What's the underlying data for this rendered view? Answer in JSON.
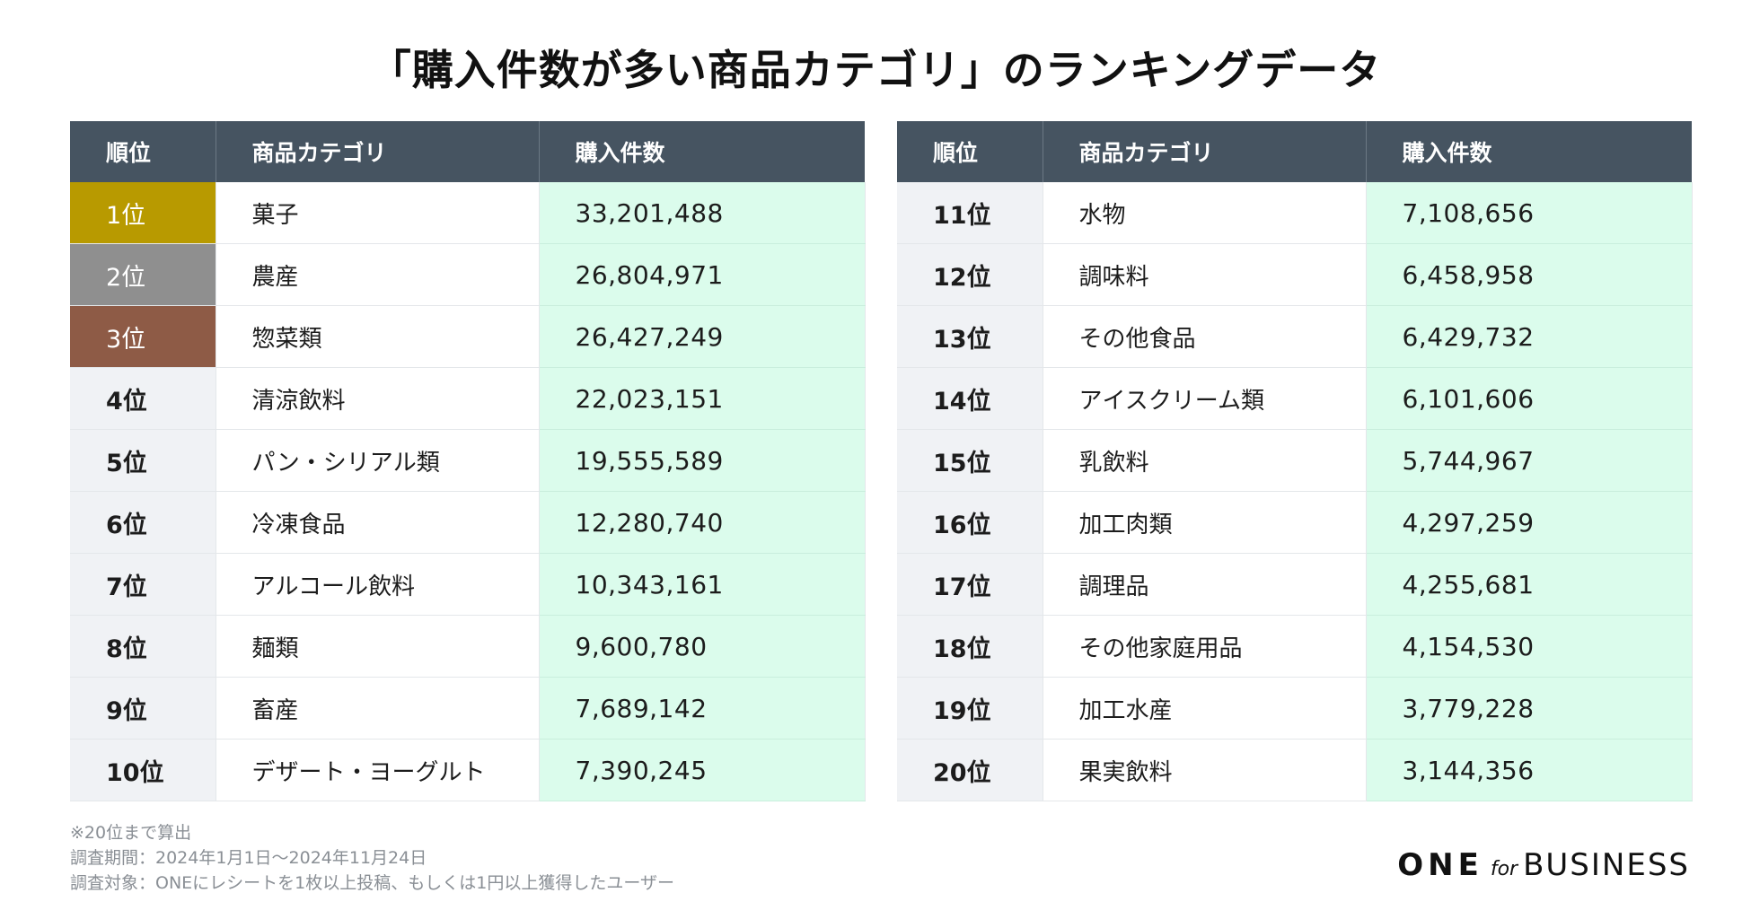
{
  "title": "「購入件数が多い商品カテゴリ」のランキングデータ",
  "headers": {
    "rank": "順位",
    "category": "商品カテゴリ",
    "count": "購入件数"
  },
  "colors": {
    "header": "#465461",
    "gold": "#b89a00",
    "silver": "#8f8f8f",
    "bronze": "#8e5b46",
    "value_bg": "#dbfcec",
    "rank_bg": "#f0f2f5"
  },
  "chart_data": {
    "type": "table",
    "columns": [
      "順位",
      "商品カテゴリ",
      "購入件数"
    ],
    "rows": [
      {
        "rank": "1位",
        "category": "菓子",
        "count": "33,201,488"
      },
      {
        "rank": "2位",
        "category": "農産",
        "count": "26,804,971"
      },
      {
        "rank": "3位",
        "category": "惣菜類",
        "count": "26,427,249"
      },
      {
        "rank": "4位",
        "category": "清涼飲料",
        "count": "22,023,151"
      },
      {
        "rank": "5位",
        "category": "パン・シリアル類",
        "count": "19,555,589"
      },
      {
        "rank": "6位",
        "category": "冷凍食品",
        "count": "12,280,740"
      },
      {
        "rank": "7位",
        "category": "アルコール飲料",
        "count": "10,343,161"
      },
      {
        "rank": "8位",
        "category": "麺類",
        "count": "9,600,780"
      },
      {
        "rank": "9位",
        "category": "畜産",
        "count": "7,689,142"
      },
      {
        "rank": "10位",
        "category": "デザート・ヨーグルト",
        "count": "7,390,245"
      },
      {
        "rank": "11位",
        "category": "水物",
        "count": "7,108,656"
      },
      {
        "rank": "12位",
        "category": "調味料",
        "count": "6,458,958"
      },
      {
        "rank": "13位",
        "category": "その他食品",
        "count": "6,429,732"
      },
      {
        "rank": "14位",
        "category": "アイスクリーム類",
        "count": "6,101,606"
      },
      {
        "rank": "15位",
        "category": "乳飲料",
        "count": "5,744,967"
      },
      {
        "rank": "16位",
        "category": "加工肉類",
        "count": "4,297,259"
      },
      {
        "rank": "17位",
        "category": "調理品",
        "count": "4,255,681"
      },
      {
        "rank": "18位",
        "category": "その他家庭用品",
        "count": "4,154,530"
      },
      {
        "rank": "19位",
        "category": "加工水産",
        "count": "3,779,228"
      },
      {
        "rank": "20位",
        "category": "果実飲料",
        "count": "3,144,356"
      }
    ]
  },
  "notes": [
    "※20位まで算出",
    "調査期間：2024年1月1日〜2024年11月24日",
    "調査対象：ONEにレシートを1枚以上投稿、もしくは1円以上獲得したユーザー"
  ],
  "logo": {
    "one": "ONE",
    "for": "for",
    "business": "BUSINESS"
  }
}
